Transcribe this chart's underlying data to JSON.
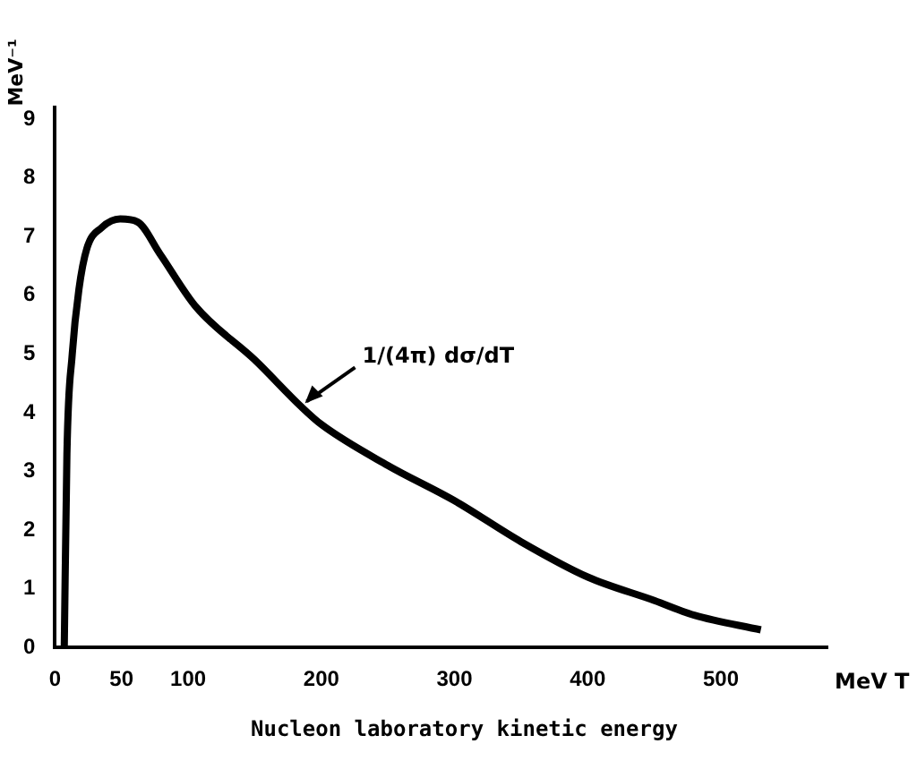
{
  "chart_data": {
    "type": "line",
    "xlabel": "Nucleon laboratory kinetic energy",
    "ylabel": "MeV⁻¹",
    "x": [
      7,
      9,
      13,
      18,
      24,
      35,
      49,
      62,
      79,
      106,
      150,
      185,
      200,
      250,
      300,
      350,
      400,
      450,
      480,
      530
    ],
    "series": [
      {
        "color": "#000000",
        "values": [
          0,
          3.3,
          5,
          6.1,
          6.8,
          7.15,
          7.3,
          7.25,
          6.7,
          5.8,
          4.9,
          4.1,
          3.8,
          3.1,
          2.5,
          1.8,
          1.2,
          0.8,
          0.55,
          0.3
        ]
      }
    ],
    "xlim": [
      0,
      580
    ],
    "xticks": [
      0,
      50,
      100,
      200,
      300,
      400,
      500
    ],
    "ylim": [
      0,
      9.2
    ],
    "yticks": [
      0,
      1,
      2,
      3,
      4,
      5,
      6,
      7,
      8,
      9
    ],
    "grid": false,
    "legend": false,
    "marker": "none",
    "line_style": "solid",
    "annotations": [
      {
        "text": "1/(4π) dσ/dT",
        "x": 185,
        "y": 4.1
      },
      "MeV T"
    ]
  }
}
